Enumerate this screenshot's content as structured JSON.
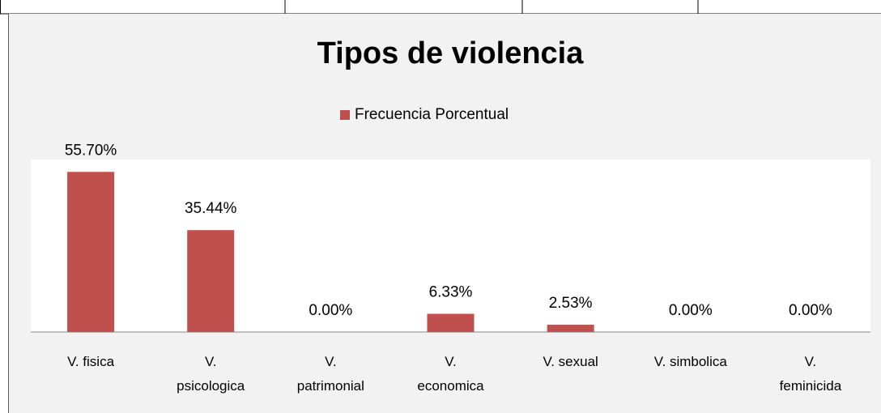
{
  "chart_data": {
    "type": "bar",
    "title": "Tipos de violencia",
    "categories": [
      "V. fisica",
      "V. psicologica",
      "V. patrimonial",
      "V. economica",
      "V. sexual",
      "V. simbolica",
      "V. feminicida"
    ],
    "series": [
      {
        "name": "Frecuencia Porcentual",
        "color": "#c0504d",
        "values": [
          55.7,
          35.44,
          0.0,
          6.33,
          2.53,
          0.0,
          0.0
        ],
        "value_labels": [
          "55.70%",
          "35.44%",
          "0.00%",
          "6.33%",
          "2.53%",
          "0.00%",
          "0.00%"
        ]
      }
    ],
    "ylim": [
      0,
      60
    ],
    "legend": "top"
  }
}
